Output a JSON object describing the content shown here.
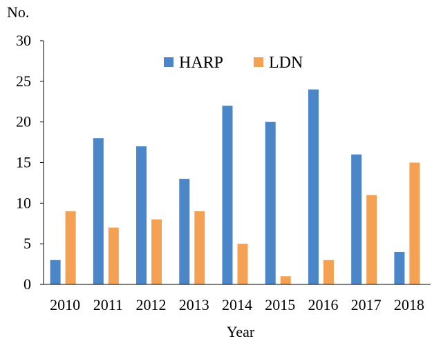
{
  "chart_data": {
    "type": "bar",
    "title": "",
    "xlabel": "Year",
    "ylabel": "No.",
    "ylim": [
      0,
      30
    ],
    "yticks": [
      0,
      5,
      10,
      15,
      20,
      25,
      30
    ],
    "grid": false,
    "legend_position": "top-center",
    "categories": [
      "2010",
      "2011",
      "2012",
      "2013",
      "2014",
      "2015",
      "2016",
      "2017",
      "2018"
    ],
    "series": [
      {
        "name": "HARP",
        "color": "#4a86c8",
        "values": [
          3,
          18,
          17,
          13,
          22,
          20,
          24,
          16,
          4
        ]
      },
      {
        "name": "LDN",
        "color": "#f4a154",
        "values": [
          9,
          7,
          8,
          9,
          5,
          1,
          3,
          11,
          15
        ]
      }
    ]
  }
}
